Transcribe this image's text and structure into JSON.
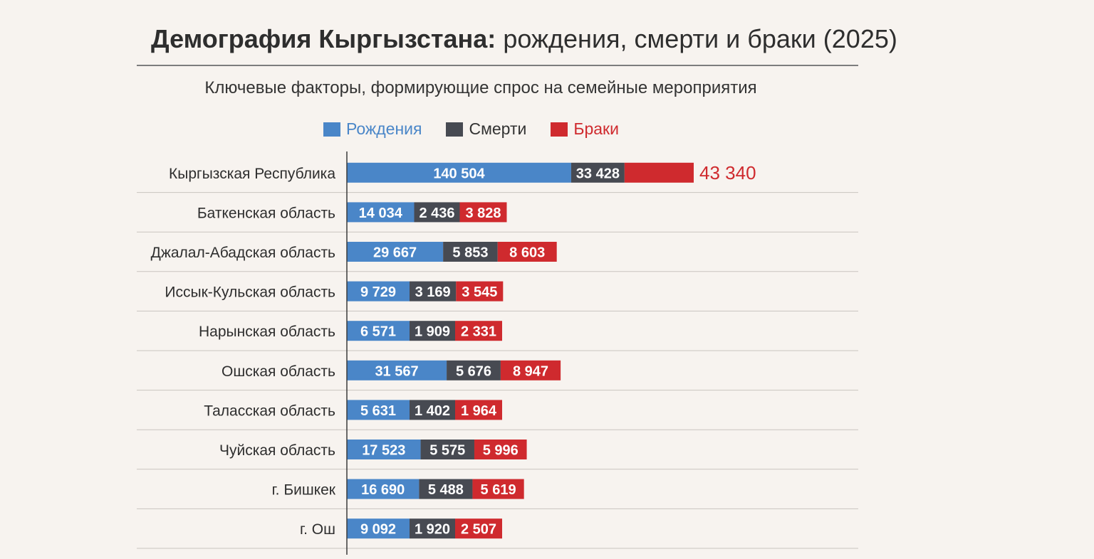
{
  "title_bold": "Демография Кыргызстана:",
  "title_rest": "рождения, смерти и браки (2025)",
  "subtitle": "Ключевые факторы, формирующие спрос на семейные мероприятия",
  "colors": {
    "births": "#4a86c8",
    "deaths": "#474a52",
    "marriages": "#cf2a2e"
  },
  "chart_data": {
    "type": "bar",
    "orientation": "horizontal",
    "stacked": true,
    "categories": [
      "Кыргызская Республика",
      "Баткенская область",
      "Джалал-Абадская область",
      "Иссык-Кульская область",
      "Нарынская область",
      "Ошская область",
      "Таласская область",
      "Чуйская область",
      "г. Бишкек",
      "г. Ош"
    ],
    "series": [
      {
        "name": "Рождения",
        "values": [
          140504,
          14034,
          29667,
          9729,
          6571,
          31567,
          5631,
          17523,
          16690,
          9092
        ],
        "labels": [
          "140 504",
          "14 034",
          "29 667",
          "9 729",
          "6 571",
          "31 567",
          "5 631",
          "17 523",
          "16 690",
          "9 092"
        ]
      },
      {
        "name": "Смерти",
        "values": [
          33428,
          2436,
          5853,
          3169,
          1909,
          5676,
          1402,
          5575,
          5488,
          1920
        ],
        "labels": [
          "33 428",
          "2 436",
          "5 853",
          "3 169",
          "1 909",
          "5 676",
          "1 402",
          "5 575",
          "5 488",
          "1 920"
        ]
      },
      {
        "name": "Браки",
        "values": [
          43340,
          3828,
          8603,
          3545,
          2331,
          8947,
          1964,
          5996,
          5619,
          2507
        ],
        "labels": [
          "43 340",
          "3 828",
          "8 603",
          "3 545",
          "2 331",
          "8 947",
          "1 964",
          "5 996",
          "5 619",
          "2 507"
        ]
      }
    ],
    "legend_position": "top",
    "grid": "horizontal row separators"
  }
}
